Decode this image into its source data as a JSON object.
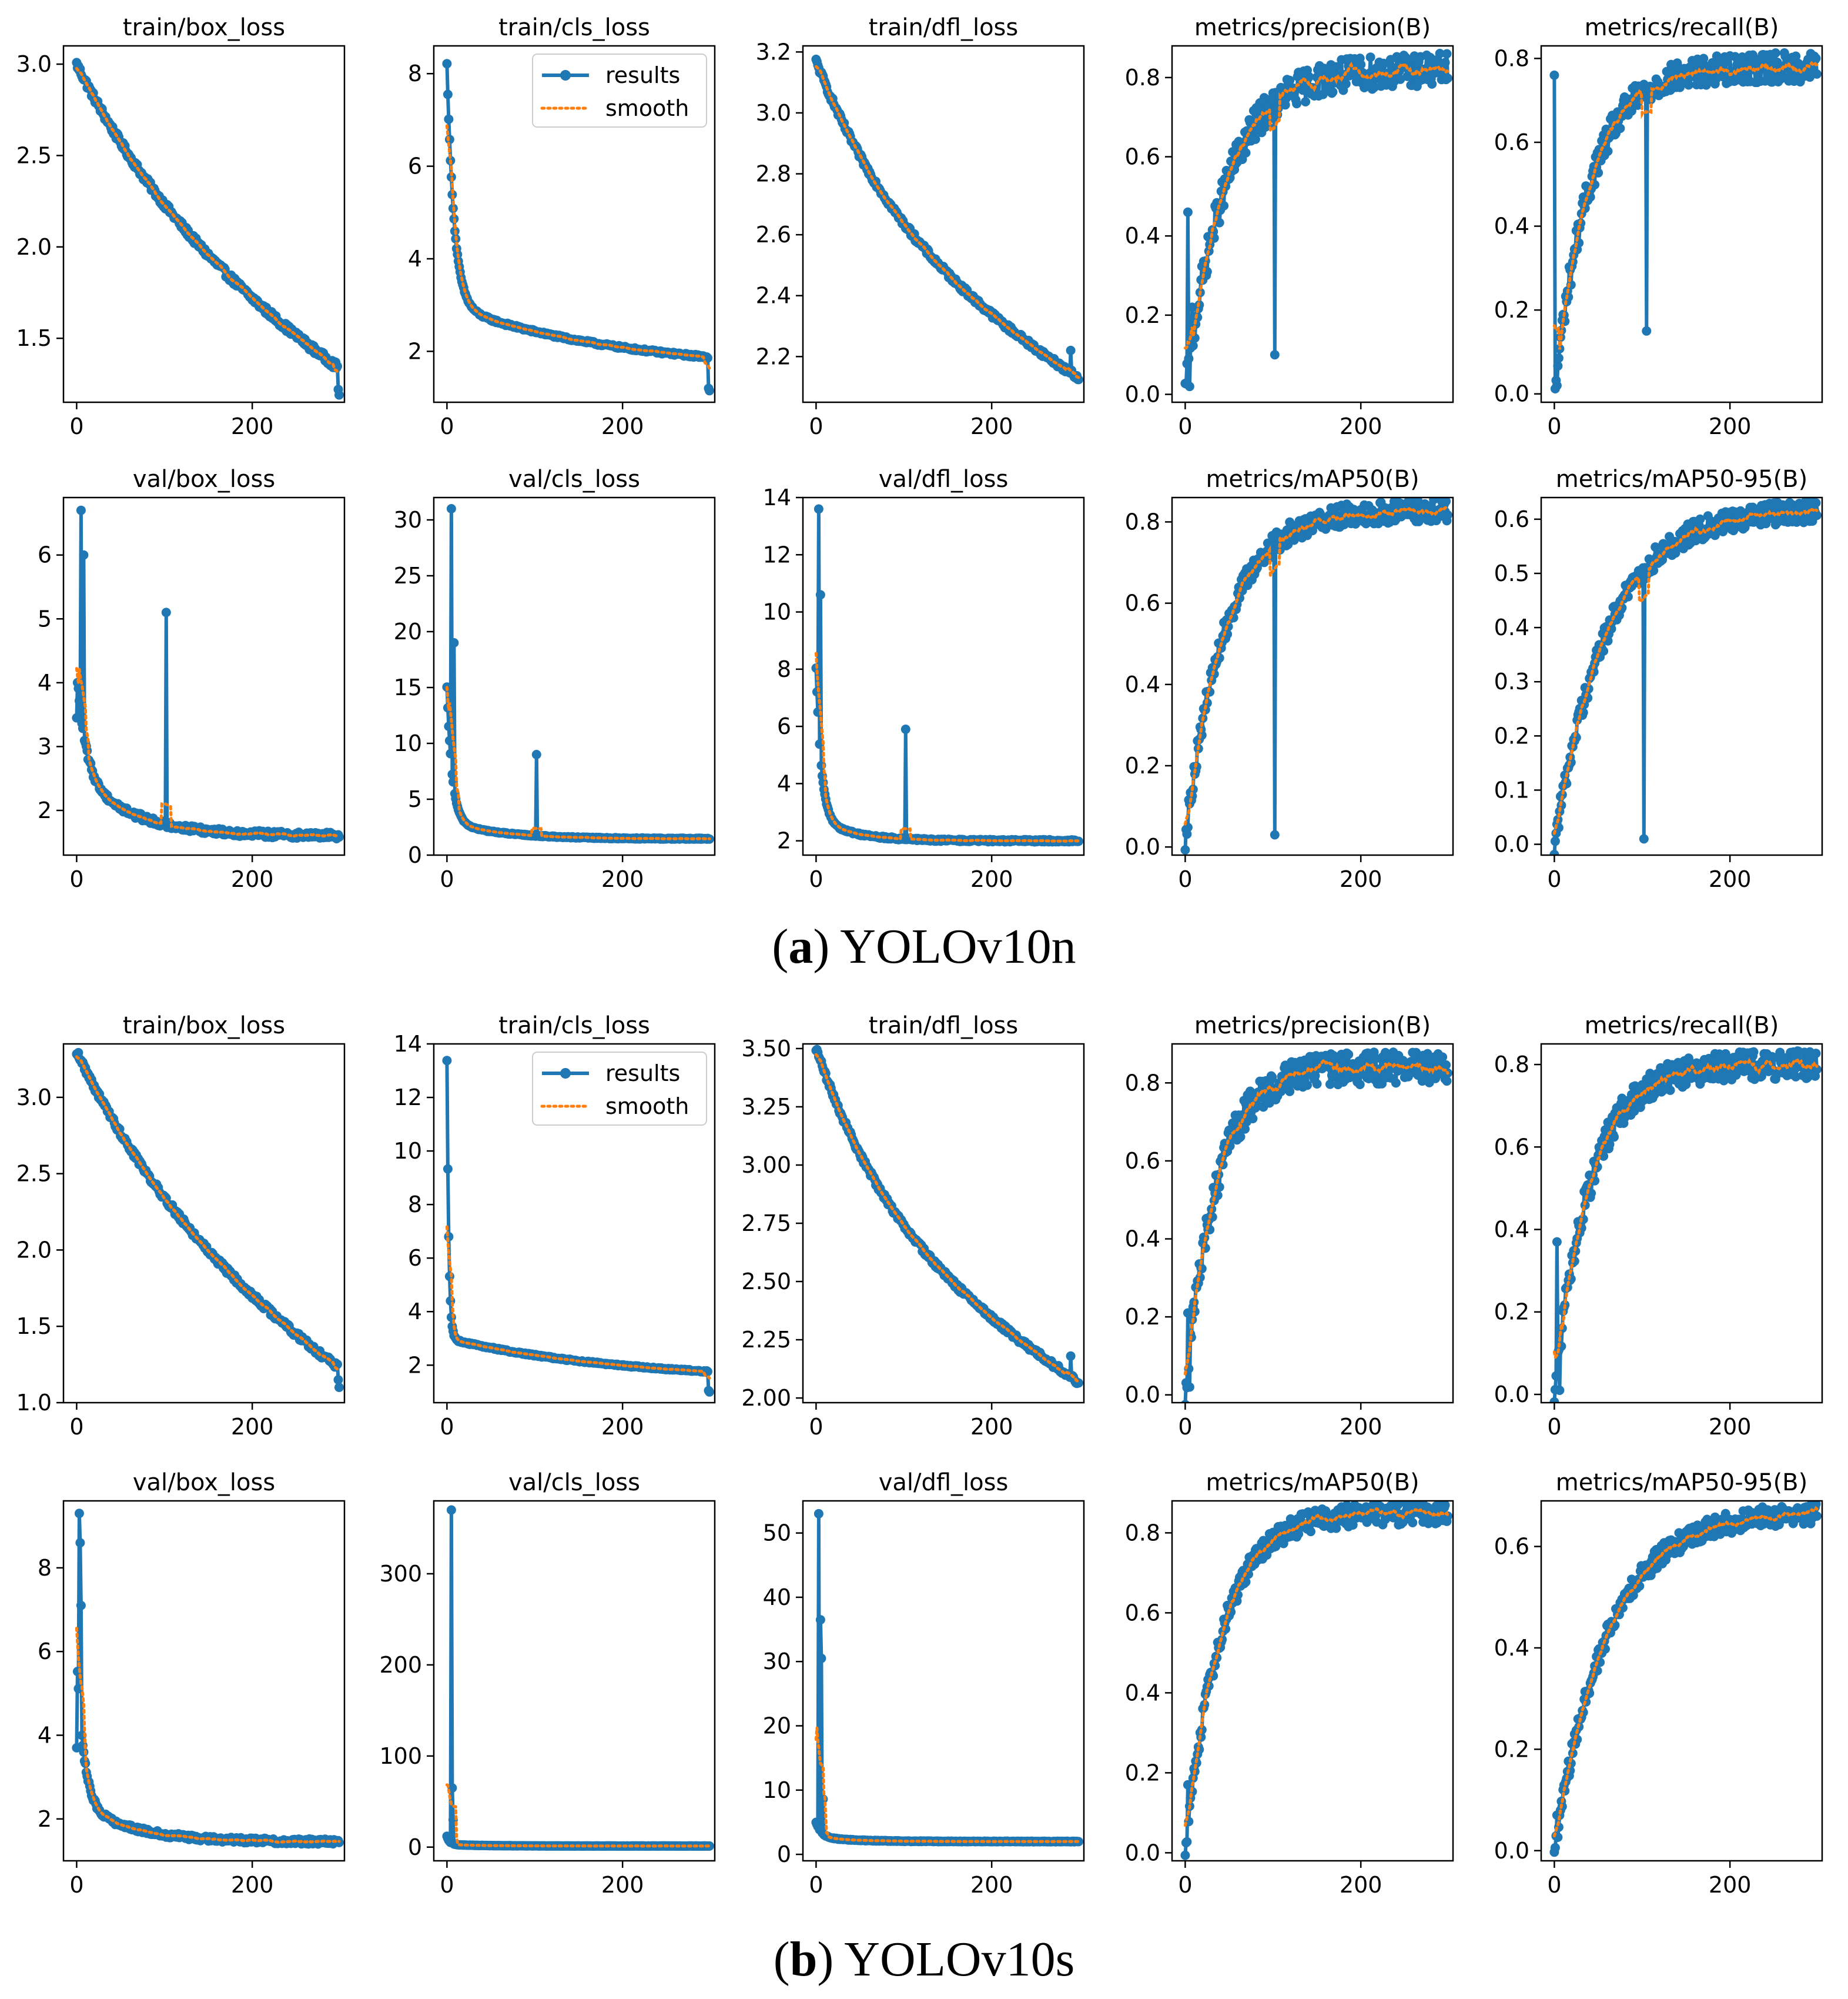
{
  "captions": {
    "a": {
      "open": "(",
      "letter": "a",
      "close": ")",
      "model": "YOLOv10n"
    },
    "b": {
      "open": "(",
      "letter": "b",
      "close": ")",
      "model": "YOLOv10s"
    }
  },
  "legend_labels": [
    "results",
    "smooth"
  ],
  "colors": {
    "results": "#1f77b4",
    "smooth": "#ff7f0e",
    "axis": "#000000",
    "background": "#ffffff"
  },
  "chart_data": [
    {
      "group": "a",
      "row": 0,
      "col": 0,
      "type": "line",
      "title": "train/box_loss",
      "xlabel": "",
      "ylabel": "",
      "xlim": [
        -15,
        305
      ],
      "ylim": [
        1.15,
        3.1
      ],
      "xticks": [
        0,
        200
      ],
      "yticks": [
        1.5,
        2.0,
        2.5,
        3.0
      ],
      "legend": false,
      "series": [
        {
          "name": "results",
          "shape": "decay",
          "start": 3.0,
          "end": 1.22,
          "tau": 140,
          "noise": 0.02,
          "spikes": [],
          "tail_drop": [
            1.22,
            1.19
          ]
        },
        {
          "name": "smooth"
        }
      ]
    },
    {
      "group": "a",
      "row": 0,
      "col": 1,
      "type": "line",
      "title": "train/cls_loss",
      "xlabel": "",
      "ylabel": "",
      "xlim": [
        -15,
        305
      ],
      "ylim": [
        0.9,
        8.6
      ],
      "xticks": [
        0,
        200
      ],
      "yticks": [
        2,
        4,
        6,
        8
      ],
      "legend": true,
      "legend_loc": "upper right",
      "series": [
        {
          "name": "results",
          "shape": "fastdecay",
          "start": 8.2,
          "end": 1.55,
          "tau": 8,
          "mid": 3.0,
          "tau2": 200,
          "noise": 0.03,
          "spikes": [],
          "tail_drop": [
            1.2,
            1.15
          ]
        },
        {
          "name": "smooth"
        }
      ]
    },
    {
      "group": "a",
      "row": 0,
      "col": 2,
      "type": "line",
      "title": "train/dfl_loss",
      "xlabel": "",
      "ylabel": "",
      "xlim": [
        -15,
        305
      ],
      "ylim": [
        2.05,
        3.22
      ],
      "xticks": [
        0,
        200
      ],
      "yticks": [
        2.2,
        2.4,
        2.6,
        2.8,
        3.0,
        3.2
      ],
      "legend": false,
      "series": [
        {
          "name": "results",
          "shape": "decay",
          "start": 3.17,
          "end": 2.1,
          "tau": 100,
          "noise": 0.01,
          "spikes": [
            [
              290,
              2.22
            ]
          ],
          "tail_drop": []
        },
        {
          "name": "smooth"
        }
      ]
    },
    {
      "group": "a",
      "row": 0,
      "col": 3,
      "type": "line",
      "title": "metrics/precision(B)",
      "xlabel": "",
      "ylabel": "",
      "xlim": [
        -15,
        305
      ],
      "ylim": [
        -0.02,
        0.88
      ],
      "xticks": [
        0,
        200
      ],
      "yticks": [
        0.0,
        0.2,
        0.4,
        0.6,
        0.8
      ],
      "legend": false,
      "series": [
        {
          "name": "results",
          "shape": "rise",
          "start": 0.0,
          "end": 0.82,
          "tau": 45,
          "noise": 0.03,
          "spikes": [
            [
              3,
              0.46
            ],
            [
              5,
              0.02
            ],
            [
              8,
              0.22
            ],
            [
              102,
              0.1
            ]
          ],
          "tail_drop": []
        },
        {
          "name": "smooth"
        }
      ]
    },
    {
      "group": "a",
      "row": 0,
      "col": 4,
      "type": "line",
      "title": "metrics/recall(B)",
      "xlabel": "",
      "ylabel": "",
      "xlim": [
        -15,
        305
      ],
      "ylim": [
        -0.02,
        0.83
      ],
      "xticks": [
        0,
        200
      ],
      "yticks": [
        0.0,
        0.2,
        0.4,
        0.6,
        0.8
      ],
      "legend": false,
      "series": [
        {
          "name": "results",
          "shape": "rise",
          "start": 0.0,
          "end": 0.78,
          "tau": 40,
          "noise": 0.025,
          "spikes": [
            [
              0,
              0.76
            ],
            [
              3,
              0.02
            ],
            [
              105,
              0.15
            ]
          ],
          "tail_drop": []
        },
        {
          "name": "smooth"
        }
      ]
    },
    {
      "group": "a",
      "row": 1,
      "col": 0,
      "type": "line",
      "title": "val/box_loss",
      "xlabel": "",
      "ylabel": "",
      "xlim": [
        -15,
        305
      ],
      "ylim": [
        1.3,
        6.9
      ],
      "xticks": [
        0,
        200
      ],
      "yticks": [
        2,
        3,
        4,
        5,
        6
      ],
      "legend": false,
      "series": [
        {
          "name": "results",
          "shape": "fastdecay",
          "start": 4.2,
          "end": 1.6,
          "tau": 10,
          "mid": 2.6,
          "tau2": 60,
          "noise": 0.05,
          "spikes": [
            [
              0,
              3.45
            ],
            [
              5,
              6.7
            ],
            [
              8,
              6.0
            ],
            [
              102,
              5.1
            ]
          ],
          "tail_drop": []
        },
        {
          "name": "smooth"
        }
      ]
    },
    {
      "group": "a",
      "row": 1,
      "col": 1,
      "type": "line",
      "title": "val/cls_loss",
      "xlabel": "",
      "ylabel": "",
      "xlim": [
        -15,
        305
      ],
      "ylim": [
        0,
        32
      ],
      "xticks": [
        0,
        200
      ],
      "yticks": [
        0,
        5,
        10,
        15,
        20,
        25,
        30
      ],
      "legend": false,
      "series": [
        {
          "name": "results",
          "shape": "fastdecay",
          "start": 15,
          "end": 1.45,
          "tau": 6,
          "mid": 3.0,
          "tau2": 60,
          "noise": 0.05,
          "spikes": [
            [
              5,
              31
            ],
            [
              8,
              19
            ],
            [
              102,
              9
            ]
          ],
          "tail_drop": []
        },
        {
          "name": "smooth"
        }
      ]
    },
    {
      "group": "a",
      "row": 1,
      "col": 2,
      "type": "line",
      "title": "val/dfl_loss",
      "xlabel": "",
      "ylabel": "",
      "xlim": [
        -15,
        305
      ],
      "ylim": [
        1.5,
        14
      ],
      "xticks": [
        0,
        200
      ],
      "yticks": [
        2,
        4,
        6,
        8,
        10,
        12,
        14
      ],
      "legend": false,
      "series": [
        {
          "name": "results",
          "shape": "fastdecay",
          "start": 8.0,
          "end": 2.0,
          "tau": 6,
          "mid": 2.8,
          "tau2": 40,
          "noise": 0.04,
          "spikes": [
            [
              3,
              13.6
            ],
            [
              5,
              10.6
            ],
            [
              102,
              5.9
            ]
          ],
          "tail_drop": []
        },
        {
          "name": "smooth"
        }
      ]
    },
    {
      "group": "a",
      "row": 1,
      "col": 3,
      "type": "line",
      "title": "metrics/mAP50(B)",
      "xlabel": "",
      "ylabel": "",
      "xlim": [
        -15,
        305
      ],
      "ylim": [
        -0.02,
        0.86
      ],
      "xticks": [
        0,
        200
      ],
      "yticks": [
        0.0,
        0.2,
        0.4,
        0.6,
        0.8
      ],
      "legend": false,
      "series": [
        {
          "name": "results",
          "shape": "rise",
          "start": 0.02,
          "end": 0.83,
          "tau": 45,
          "noise": 0.02,
          "spikes": [
            [
              102,
              0.03
            ]
          ],
          "tail_drop": []
        },
        {
          "name": "smooth"
        }
      ]
    },
    {
      "group": "a",
      "row": 1,
      "col": 4,
      "type": "line",
      "title": "metrics/mAP50-95(B)",
      "xlabel": "",
      "ylabel": "",
      "xlim": [
        -15,
        305
      ],
      "ylim": [
        -0.02,
        0.64
      ],
      "xticks": [
        0,
        200
      ],
      "yticks": [
        0.0,
        0.1,
        0.2,
        0.3,
        0.4,
        0.5,
        0.6
      ],
      "legend": false,
      "series": [
        {
          "name": "results",
          "shape": "rise",
          "start": 0.0,
          "end": 0.62,
          "tau": 60,
          "noise": 0.015,
          "spikes": [
            [
              102,
              0.01
            ]
          ],
          "tail_drop": []
        },
        {
          "name": "smooth"
        }
      ]
    },
    {
      "group": "b",
      "row": 0,
      "col": 0,
      "type": "line",
      "title": "train/box_loss",
      "xlabel": "",
      "ylabel": "",
      "xlim": [
        -15,
        305
      ],
      "ylim": [
        1.0,
        3.35
      ],
      "xticks": [
        0,
        200
      ],
      "yticks": [
        1.0,
        1.5,
        2.0,
        2.5,
        3.0
      ],
      "legend": false,
      "series": [
        {
          "name": "results",
          "shape": "decay",
          "start": 3.3,
          "end": 1.08,
          "tau": 140,
          "noise": 0.02,
          "spikes": [],
          "tail_drop": [
            1.15,
            1.1
          ]
        },
        {
          "name": "smooth"
        }
      ]
    },
    {
      "group": "b",
      "row": 0,
      "col": 1,
      "type": "line",
      "title": "train/cls_loss",
      "xlabel": "",
      "ylabel": "",
      "xlim": [
        -15,
        305
      ],
      "ylim": [
        0.6,
        14
      ],
      "xticks": [
        0,
        200
      ],
      "yticks": [
        2,
        4,
        6,
        8,
        10,
        12,
        14
      ],
      "legend": true,
      "legend_loc": "upper right",
      "series": [
        {
          "name": "results",
          "shape": "fastdecay",
          "start": 13.4,
          "end": 1.4,
          "tau": 2,
          "mid": 3.0,
          "tau2": 200,
          "noise": 0.03,
          "spikes": [],
          "tail_drop": [
            1.05,
            1.0
          ]
        },
        {
          "name": "smooth"
        }
      ]
    },
    {
      "group": "b",
      "row": 0,
      "col": 2,
      "type": "line",
      "title": "train/dfl_loss",
      "xlabel": "",
      "ylabel": "",
      "xlim": [
        -15,
        305
      ],
      "ylim": [
        1.98,
        3.52
      ],
      "xticks": [
        0,
        200
      ],
      "yticks": [
        2.0,
        2.25,
        2.5,
        2.75,
        3.0,
        3.25,
        3.5
      ],
      "legend": false,
      "series": [
        {
          "name": "results",
          "shape": "decay",
          "start": 3.5,
          "end": 2.04,
          "tau": 90,
          "noise": 0.012,
          "spikes": [
            [
              290,
              2.18
            ]
          ],
          "tail_drop": []
        },
        {
          "name": "smooth"
        }
      ]
    },
    {
      "group": "b",
      "row": 0,
      "col": 3,
      "type": "line",
      "title": "metrics/precision(B)",
      "xlabel": "",
      "ylabel": "",
      "xlim": [
        -15,
        305
      ],
      "ylim": [
        -0.02,
        0.9
      ],
      "xticks": [
        0,
        200
      ],
      "yticks": [
        0.0,
        0.2,
        0.4,
        0.6,
        0.8
      ],
      "legend": false,
      "series": [
        {
          "name": "results",
          "shape": "rise",
          "start": 0.0,
          "end": 0.84,
          "tau": 35,
          "noise": 0.03,
          "spikes": [
            [
              3,
              0.21
            ],
            [
              5,
              0.02
            ]
          ],
          "tail_drop": []
        },
        {
          "name": "smooth"
        }
      ]
    },
    {
      "group": "b",
      "row": 0,
      "col": 4,
      "type": "line",
      "title": "metrics/recall(B)",
      "xlabel": "",
      "ylabel": "",
      "xlim": [
        -15,
        305
      ],
      "ylim": [
        -0.02,
        0.85
      ],
      "xticks": [
        0,
        200
      ],
      "yticks": [
        0.0,
        0.2,
        0.4,
        0.6,
        0.8
      ],
      "legend": false,
      "series": [
        {
          "name": "results",
          "shape": "rise",
          "start": 0.0,
          "end": 0.8,
          "tau": 40,
          "noise": 0.025,
          "spikes": [
            [
              3,
              0.37
            ],
            [
              6,
              0.01
            ]
          ],
          "tail_drop": []
        },
        {
          "name": "smooth"
        }
      ]
    },
    {
      "group": "b",
      "row": 1,
      "col": 0,
      "type": "line",
      "title": "val/box_loss",
      "xlabel": "",
      "ylabel": "",
      "xlim": [
        -15,
        305
      ],
      "ylim": [
        1.0,
        9.6
      ],
      "xticks": [
        0,
        200
      ],
      "yticks": [
        2,
        4,
        6,
        8
      ],
      "legend": false,
      "series": [
        {
          "name": "results",
          "shape": "fastdecay",
          "start": 6.0,
          "end": 1.45,
          "tau": 8,
          "mid": 2.4,
          "tau2": 60,
          "noise": 0.06,
          "spikes": [
            [
              0,
              3.7
            ],
            [
              3,
              9.3
            ],
            [
              4,
              8.6
            ],
            [
              5,
              7.1
            ]
          ],
          "tail_drop": []
        },
        {
          "name": "smooth"
        }
      ]
    },
    {
      "group": "b",
      "row": 1,
      "col": 1,
      "type": "line",
      "title": "val/cls_loss",
      "xlabel": "",
      "ylabel": "",
      "xlim": [
        -15,
        305
      ],
      "ylim": [
        -15,
        380
      ],
      "xticks": [
        0,
        200
      ],
      "yticks": [
        0,
        100,
        200,
        300
      ],
      "legend": false,
      "series": [
        {
          "name": "results",
          "shape": "fastdecay",
          "start": 12,
          "end": 1.2,
          "tau": 3,
          "mid": 3.0,
          "tau2": 40,
          "noise": 0.1,
          "spikes": [
            [
              5,
              370
            ],
            [
              6,
              65
            ],
            [
              7,
              30
            ]
          ],
          "tail_drop": []
        },
        {
          "name": "smooth"
        }
      ]
    },
    {
      "group": "b",
      "row": 1,
      "col": 2,
      "type": "line",
      "title": "val/dfl_loss",
      "xlabel": "",
      "ylabel": "",
      "xlim": [
        -15,
        305
      ],
      "ylim": [
        -1,
        55
      ],
      "xticks": [
        0,
        200
      ],
      "yticks": [
        0,
        10,
        20,
        30,
        40,
        50
      ],
      "legend": false,
      "series": [
        {
          "name": "results",
          "shape": "fastdecay",
          "start": 5,
          "end": 2.0,
          "tau": 6,
          "mid": 2.7,
          "tau2": 40,
          "noise": 0.05,
          "spikes": [
            [
              3,
              53
            ],
            [
              5,
              36.5
            ],
            [
              6,
              30.5
            ],
            [
              8,
              8.6
            ]
          ],
          "tail_drop": []
        },
        {
          "name": "smooth"
        }
      ]
    },
    {
      "group": "b",
      "row": 1,
      "col": 3,
      "type": "line",
      "title": "metrics/mAP50(B)",
      "xlabel": "",
      "ylabel": "",
      "xlim": [
        -15,
        305
      ],
      "ylim": [
        -0.02,
        0.88
      ],
      "xticks": [
        0,
        200
      ],
      "yticks": [
        0.0,
        0.2,
        0.4,
        0.6,
        0.8
      ],
      "legend": false,
      "series": [
        {
          "name": "results",
          "shape": "rise",
          "start": 0.0,
          "end": 0.85,
          "tau": 40,
          "noise": 0.02,
          "spikes": [
            [
              3,
              0.17
            ]
          ],
          "tail_drop": []
        },
        {
          "name": "smooth"
        }
      ]
    },
    {
      "group": "b",
      "row": 1,
      "col": 4,
      "type": "line",
      "title": "metrics/mAP50-95(B)",
      "xlabel": "",
      "ylabel": "",
      "xlim": [
        -15,
        305
      ],
      "ylim": [
        -0.02,
        0.69
      ],
      "xticks": [
        0,
        200
      ],
      "yticks": [
        0.0,
        0.2,
        0.4,
        0.6
      ],
      "legend": false,
      "series": [
        {
          "name": "results",
          "shape": "rise",
          "start": 0.0,
          "end": 0.67,
          "tau": 60,
          "noise": 0.015,
          "spikes": [
            [
              3,
              0.07
            ]
          ],
          "tail_drop": []
        },
        {
          "name": "smooth"
        }
      ]
    }
  ]
}
